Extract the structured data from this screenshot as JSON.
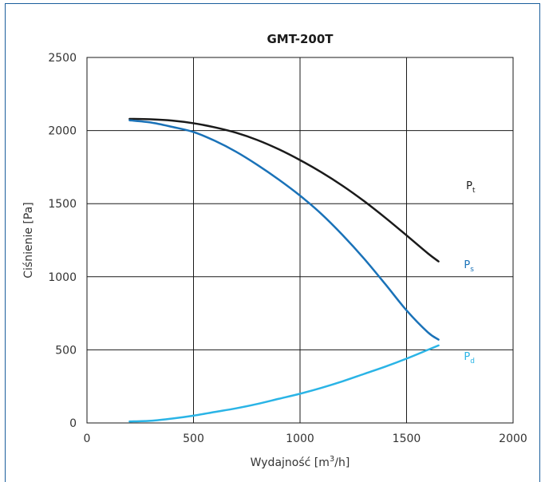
{
  "chart_data": {
    "type": "line",
    "title": "GMT-200T",
    "xlabel_main": "Wydajność [m",
    "xlabel_sup": "3",
    "xlabel_tail": "/h]",
    "ylabel": "Ciśnienie [Pa]",
    "xlim": [
      0,
      2000
    ],
    "ylim": [
      0,
      2500
    ],
    "x_ticks": [
      0,
      500,
      1000,
      1500,
      2000
    ],
    "y_ticks": [
      0,
      500,
      1000,
      1500,
      2000,
      2500
    ],
    "x_tick_labels": [
      "0",
      "500",
      "1000",
      "1500",
      "2000"
    ],
    "y_tick_labels": [
      "0",
      "500",
      "1000",
      "1500",
      "2000",
      "2500"
    ],
    "grid": true,
    "series": [
      {
        "name_main": "P",
        "name_sub": "t",
        "color": "#1a1a1a",
        "label_at": [
          1300,
          1600
        ],
        "points": [
          [
            200,
            2080
          ],
          [
            300,
            2077
          ],
          [
            400,
            2068
          ],
          [
            500,
            2050
          ],
          [
            600,
            2022
          ],
          [
            700,
            1985
          ],
          [
            800,
            1935
          ],
          [
            900,
            1872
          ],
          [
            1000,
            1798
          ],
          [
            1100,
            1715
          ],
          [
            1200,
            1622
          ],
          [
            1300,
            1518
          ],
          [
            1400,
            1404
          ],
          [
            1500,
            1283
          ],
          [
            1600,
            1160
          ],
          [
            1650,
            1105
          ]
        ]
      },
      {
        "name_main": "P",
        "name_sub": "s",
        "color": "#1a72b8",
        "label_at": [
          1290,
          1060
        ],
        "points": [
          [
            200,
            2070
          ],
          [
            300,
            2055
          ],
          [
            400,
            2025
          ],
          [
            500,
            1990
          ],
          [
            600,
            1930
          ],
          [
            700,
            1855
          ],
          [
            800,
            1765
          ],
          [
            900,
            1665
          ],
          [
            1000,
            1555
          ],
          [
            1100,
            1430
          ],
          [
            1200,
            1285
          ],
          [
            1300,
            1125
          ],
          [
            1400,
            950
          ],
          [
            1500,
            770
          ],
          [
            1600,
            620
          ],
          [
            1650,
            570
          ]
        ]
      },
      {
        "name_main": "P",
        "name_sub": "d",
        "color": "#2ab4e6",
        "label_at": [
          1290,
          430
        ],
        "points": [
          [
            200,
            10
          ],
          [
            300,
            15
          ],
          [
            400,
            30
          ],
          [
            500,
            50
          ],
          [
            600,
            75
          ],
          [
            700,
            100
          ],
          [
            800,
            130
          ],
          [
            900,
            165
          ],
          [
            1000,
            200
          ],
          [
            1100,
            240
          ],
          [
            1200,
            285
          ],
          [
            1300,
            335
          ],
          [
            1400,
            385
          ],
          [
            1500,
            440
          ],
          [
            1600,
            500
          ],
          [
            1650,
            530
          ]
        ]
      }
    ]
  }
}
